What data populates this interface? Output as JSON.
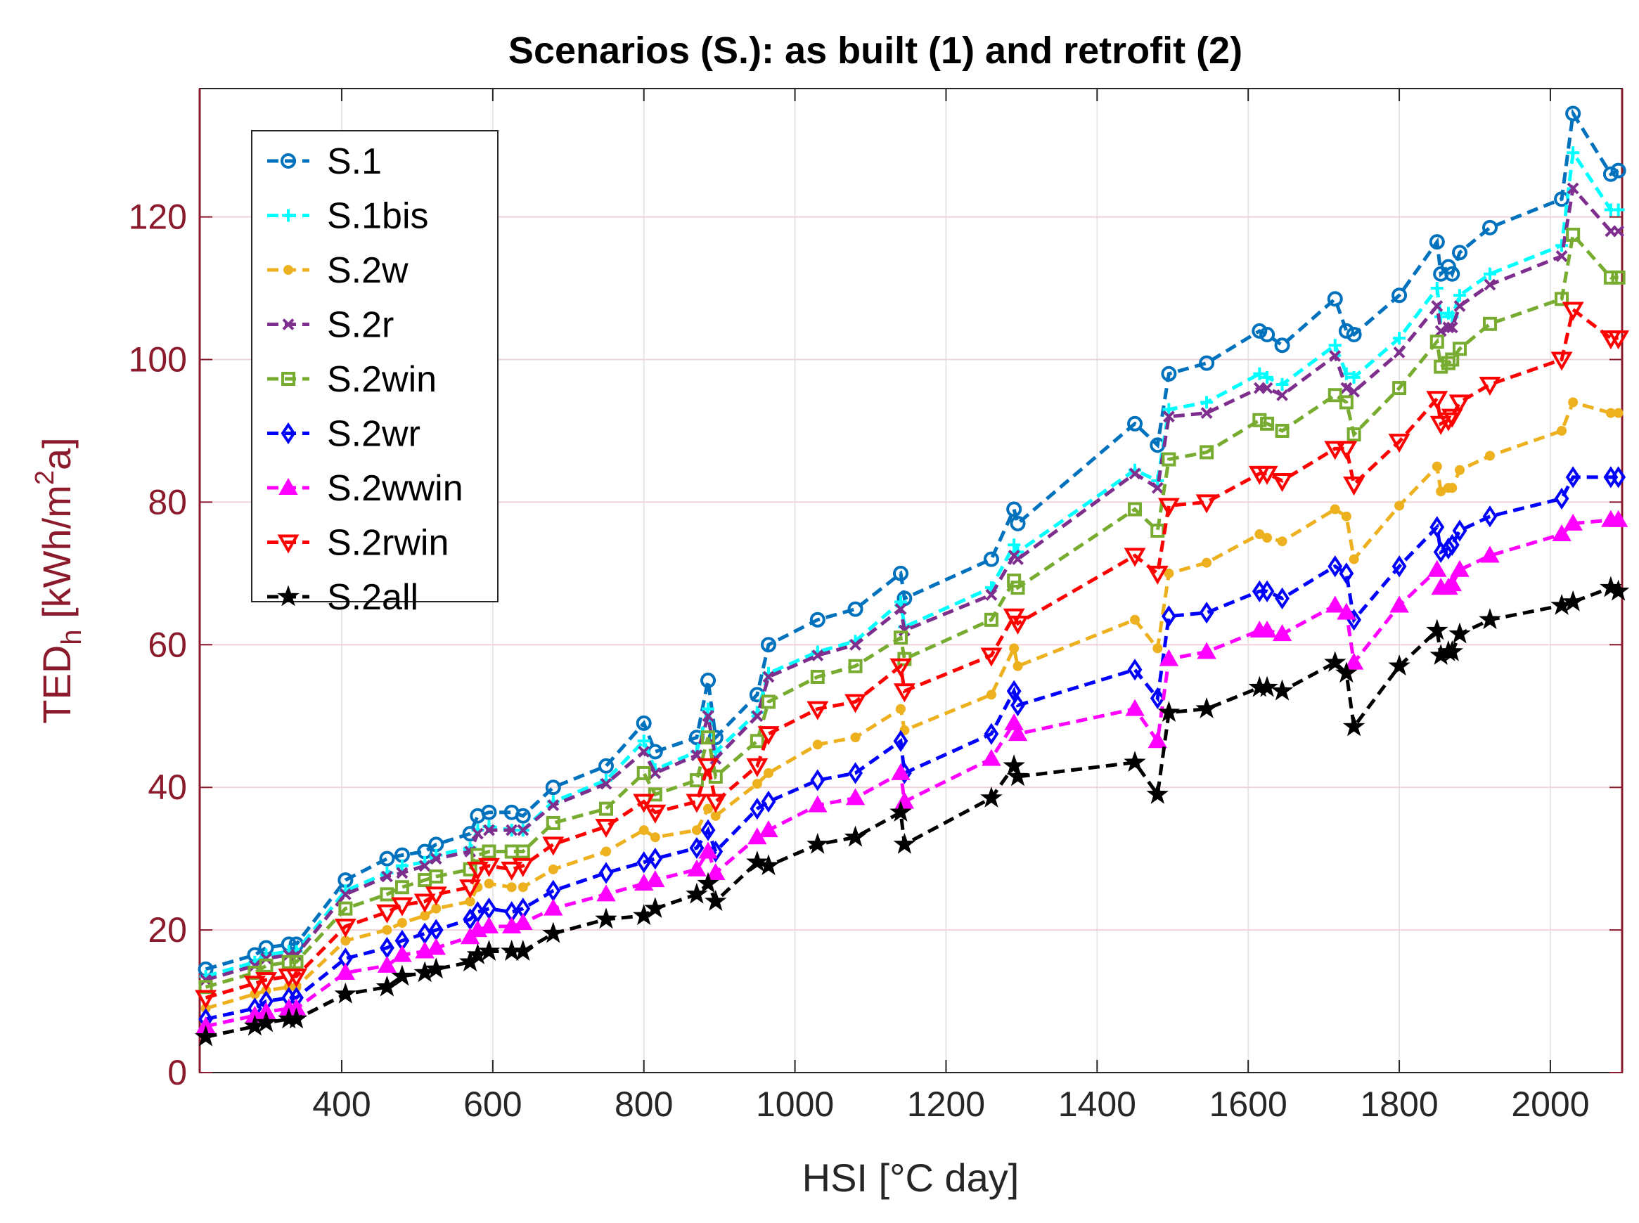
{
  "chart_data": {
    "type": "line",
    "title": "Scenarios (S.): as built (1) and retrofit (2)",
    "xlabel": "HSI [°C day]",
    "ylabel": {
      "base": "TED",
      "sub": "h",
      "unit_open": " [kWh/m",
      "sup": "2",
      "unit_close": "a]"
    },
    "xlim": [
      212,
      2095
    ],
    "ylim": [
      0,
      138
    ],
    "xticks": [
      400,
      600,
      800,
      1000,
      1200,
      1400,
      1600,
      1800,
      2000
    ],
    "yticks": [
      0,
      20,
      40,
      60,
      80,
      100,
      120
    ],
    "grid": true,
    "line_style": "dashed",
    "legend_position": "top-left",
    "x": [
      220,
      285,
      300,
      330,
      340,
      405,
      460,
      480,
      510,
      525,
      570,
      580,
      595,
      625,
      640,
      680,
      750,
      800,
      815,
      870,
      885,
      895,
      950,
      965,
      1030,
      1080,
      1140,
      1145,
      1260,
      1290,
      1295,
      1450,
      1480,
      1495,
      1545,
      1615,
      1625,
      1645,
      1715,
      1730,
      1740,
      1800,
      1850,
      1855,
      1865,
      1870,
      1880,
      1920,
      2015,
      2030,
      2080,
      2090
    ],
    "series": [
      {
        "name": "S.1",
        "color": "#0072bd",
        "marker": "circle",
        "values": [
          14.5,
          16.5,
          17.5,
          18,
          18,
          27,
          30,
          30.5,
          31,
          32,
          33.5,
          36,
          36.5,
          36.5,
          36,
          40,
          43,
          49,
          45,
          47,
          55,
          47,
          53,
          60,
          63.5,
          65,
          70,
          66.5,
          72,
          79,
          77,
          91,
          88,
          98,
          99.5,
          104,
          103.5,
          102,
          108.5,
          104,
          103.5,
          109,
          116.5,
          112,
          113,
          112,
          115,
          118.5,
          122.5,
          134.5,
          126,
          126.5
        ]
      },
      {
        "name": "S.1bis",
        "color": "#00ffff",
        "marker": "plus",
        "values": [
          13.5,
          15.5,
          16.5,
          17,
          17,
          25.5,
          28,
          29,
          29.5,
          30.5,
          31.5,
          34,
          34.5,
          34,
          34,
          38,
          41,
          46.5,
          42.5,
          45,
          51,
          45,
          50.5,
          56,
          59,
          60.5,
          66,
          62.5,
          68,
          74,
          73,
          84.5,
          83,
          93,
          94,
          98,
          97.5,
          96.5,
          102,
          98,
          97.5,
          103,
          110,
          106,
          106.5,
          106,
          109,
          112,
          116,
          129,
          121,
          121
        ]
      },
      {
        "name": "S.2w",
        "color": "#edb120",
        "marker": "dot",
        "values": [
          9,
          11,
          11.5,
          12,
          12,
          18.5,
          20,
          21,
          22,
          23,
          24,
          26,
          26.5,
          26,
          26,
          28.5,
          31,
          34,
          33,
          34,
          37,
          36,
          40.5,
          42,
          46,
          47,
          51,
          48,
          53,
          59.5,
          57,
          63.5,
          59.5,
          70,
          71.5,
          75.5,
          75,
          74.5,
          79,
          78,
          72,
          79.5,
          85,
          81.5,
          82,
          82,
          84.5,
          86.5,
          90,
          94,
          92.5,
          92.5
        ]
      },
      {
        "name": "S.2r",
        "color": "#7e2f8e",
        "marker": "x",
        "values": [
          13,
          15,
          16,
          16.5,
          16.5,
          25,
          27.5,
          28,
          29,
          30,
          31,
          33.5,
          34,
          34,
          34,
          37.5,
          40.5,
          45,
          42,
          44.5,
          50,
          44,
          50,
          55.5,
          58.5,
          60,
          65,
          62,
          67,
          72.5,
          72,
          84,
          82,
          92,
          92.5,
          96,
          96,
          95,
          100.5,
          96,
          95.5,
          101,
          107.5,
          104,
          104.5,
          104.5,
          107.5,
          110.5,
          114.5,
          124,
          118,
          118
        ]
      },
      {
        "name": "S.2win",
        "color": "#77ac30",
        "marker": "square",
        "values": [
          12,
          14,
          15,
          15.5,
          15.5,
          23,
          25,
          26,
          27,
          27.5,
          28.5,
          30.5,
          31,
          31,
          31,
          35,
          37,
          42,
          39,
          41,
          47,
          41.5,
          46.5,
          52,
          55.5,
          57,
          61,
          58,
          63.5,
          69,
          68,
          79,
          76,
          86,
          87,
          91.5,
          91,
          90,
          95,
          94,
          89.5,
          96,
          102.5,
          99,
          99.5,
          100,
          101.5,
          105,
          108.5,
          117.5,
          111.5,
          111.5
        ]
      },
      {
        "name": "S.2wr",
        "color": "#0000ff",
        "marker": "diamond",
        "values": [
          7.5,
          9,
          10,
          10.5,
          10.5,
          16,
          17.5,
          18.5,
          19.5,
          20,
          21.5,
          22.5,
          23,
          22.5,
          23,
          25.5,
          28,
          29.5,
          30,
          31.5,
          34,
          31,
          37,
          38,
          41,
          42,
          46.5,
          42,
          47.5,
          53.5,
          51.5,
          56.5,
          52.5,
          64,
          64.5,
          67.5,
          67.5,
          66.5,
          71,
          70,
          63.5,
          71,
          76.5,
          73,
          73.5,
          74,
          76,
          78,
          80.5,
          83.5,
          83.5,
          83.5
        ]
      },
      {
        "name": "S.2wwin",
        "color": "#ff00ff",
        "marker": "triangle-up",
        "values": [
          6.5,
          8,
          8.5,
          9,
          9,
          14,
          15,
          16.5,
          17,
          17.5,
          19,
          20,
          20.5,
          20.5,
          21,
          23,
          25,
          26.5,
          27,
          28.5,
          31,
          28,
          33,
          34,
          37.5,
          38.5,
          42,
          38,
          44,
          49,
          47.5,
          51,
          46.5,
          58,
          59,
          62,
          62,
          61.5,
          65.5,
          64.5,
          57.5,
          65.5,
          70.5,
          68,
          68,
          68.5,
          70.5,
          72.5,
          75.5,
          77,
          77.5,
          77.5
        ]
      },
      {
        "name": "S.2rwin",
        "color": "#ff0000",
        "marker": "triangle-down",
        "values": [
          10.5,
          12.5,
          13,
          13.5,
          13.5,
          20.5,
          22.5,
          23.5,
          24,
          25,
          26,
          28.5,
          29,
          28.5,
          29,
          32,
          34.5,
          38,
          36.5,
          38,
          43,
          38,
          43,
          47.5,
          51,
          52,
          57,
          53.5,
          58.5,
          64,
          63,
          72.5,
          70,
          79.5,
          80,
          84,
          84,
          83,
          87.5,
          87.5,
          82.5,
          88.5,
          94.5,
          91,
          91.5,
          92,
          94,
          96.5,
          100,
          107,
          103,
          103
        ]
      },
      {
        "name": "S.2all",
        "color": "#000000",
        "marker": "star",
        "values": [
          5,
          6.5,
          7,
          7.5,
          7.5,
          11,
          12,
          13.5,
          14,
          14.5,
          15.5,
          16.5,
          17,
          17,
          17,
          19.5,
          21.5,
          22,
          23,
          25,
          26.5,
          24,
          29.5,
          29,
          32,
          33,
          36.5,
          32,
          38.5,
          43,
          41.5,
          43.5,
          39,
          50.5,
          51,
          54,
          54,
          53.5,
          57.5,
          56,
          48.5,
          57,
          62,
          58.5,
          59,
          59,
          61.5,
          63.5,
          65.5,
          66,
          68,
          67.5
        ]
      }
    ]
  }
}
